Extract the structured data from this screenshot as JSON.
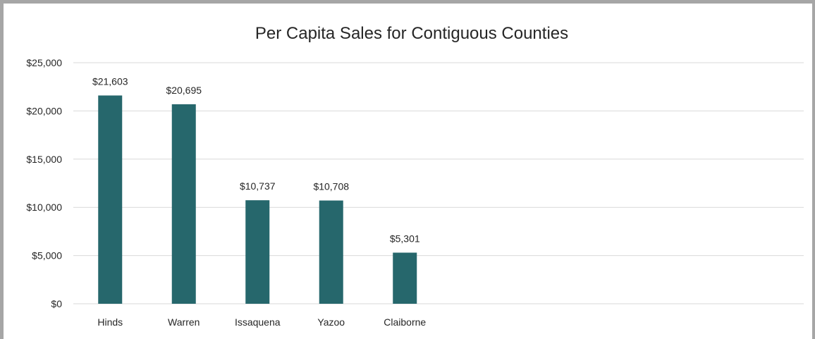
{
  "chart_data": {
    "type": "bar",
    "title": "Per Capita Sales for Contiguous Counties",
    "xlabel": "",
    "ylabel": "",
    "categories": [
      "Hinds",
      "Warren",
      "Issaquena",
      "Yazoo",
      "Claiborne"
    ],
    "values": [
      21603,
      20695,
      10737,
      10708,
      5301
    ],
    "data_labels": [
      "$21,603",
      "$20,695",
      "$10,737",
      "$10,708",
      "$5,301"
    ],
    "ylim": [
      0,
      25000
    ],
    "yticks": [
      0,
      5000,
      10000,
      15000,
      20000,
      25000
    ],
    "ytick_labels": [
      "$0",
      "$5,000",
      "$10,000",
      "$15,000",
      "$20,000",
      "$25,000"
    ],
    "grid": true,
    "legend": "none",
    "bar_color": "#26676c"
  }
}
